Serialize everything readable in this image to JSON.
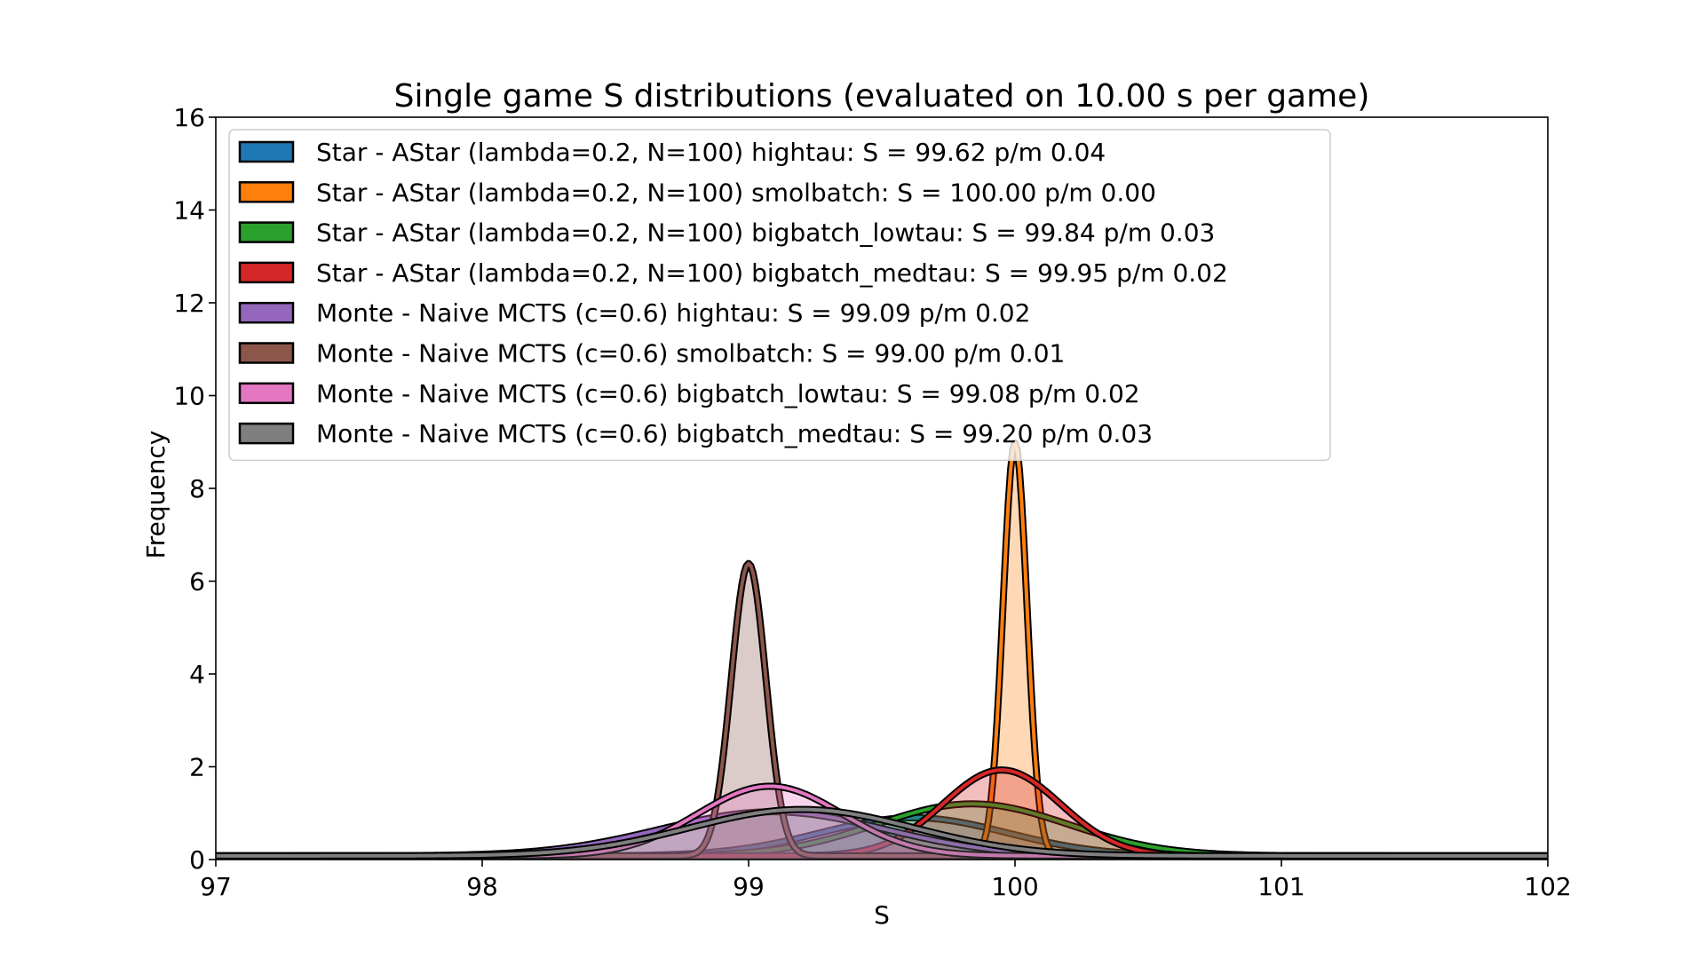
{
  "chart_data": {
    "type": "area",
    "title": "Single game S distributions (evaluated on 10.00 s per game)",
    "xlabel": "S",
    "ylabel": "Frequency",
    "xlim": [
      97,
      102
    ],
    "ylim": [
      0,
      16
    ],
    "xticks": [
      97,
      98,
      99,
      100,
      101,
      102
    ],
    "yticks": [
      0,
      2,
      4,
      6,
      8,
      10,
      12,
      14,
      16
    ],
    "grid": false,
    "legend_position": "top-left",
    "series": [
      {
        "name": "Star - AStar (lambda=0.2, N=100) hightau: S = 99.62 p/m 0.04",
        "color": "#1f77b4",
        "mean": 99.62,
        "peak": 0.82,
        "std": 0.35
      },
      {
        "name": "Star - AStar (lambda=0.2, N=100) smolbatch: S = 100.00 p/m 0.00",
        "color": "#ff7f0e",
        "mean": 100.0,
        "peak": 8.9,
        "std": 0.045
      },
      {
        "name": "Star - AStar (lambda=0.2, N=100) bigbatch_lowtau: S = 99.84 p/m 0.03",
        "color": "#2ca02c",
        "mean": 99.84,
        "peak": 1.12,
        "std": 0.36
      },
      {
        "name": "Star - AStar (lambda=0.2, N=100) bigbatch_medtau: S = 99.95 p/m 0.02",
        "color": "#d62728",
        "mean": 99.95,
        "peak": 1.85,
        "std": 0.22
      },
      {
        "name": "Monte - Naive MCTS (c=0.6) hightau: S = 99.09 p/m 0.02",
        "color": "#9467bd",
        "mean": 99.09,
        "peak": 0.95,
        "std": 0.42
      },
      {
        "name": "Monte - Naive MCTS (c=0.6) smolbatch: S = 99.00 p/m 0.01",
        "color": "#8c564b",
        "mean": 99.0,
        "peak": 6.3,
        "std": 0.065
      },
      {
        "name": "Monte - Naive MCTS (c=0.6) bigbatch_lowtau: S = 99.08 p/m 0.02",
        "color": "#e377c2",
        "mean": 99.08,
        "peak": 1.5,
        "std": 0.27
      },
      {
        "name": "Monte - Naive MCTS (c=0.6) bigbatch_medtau: S = 99.20 p/m 0.03",
        "color": "#7f7f7f",
        "mean": 99.2,
        "peak": 1.0,
        "std": 0.42
      }
    ]
  }
}
